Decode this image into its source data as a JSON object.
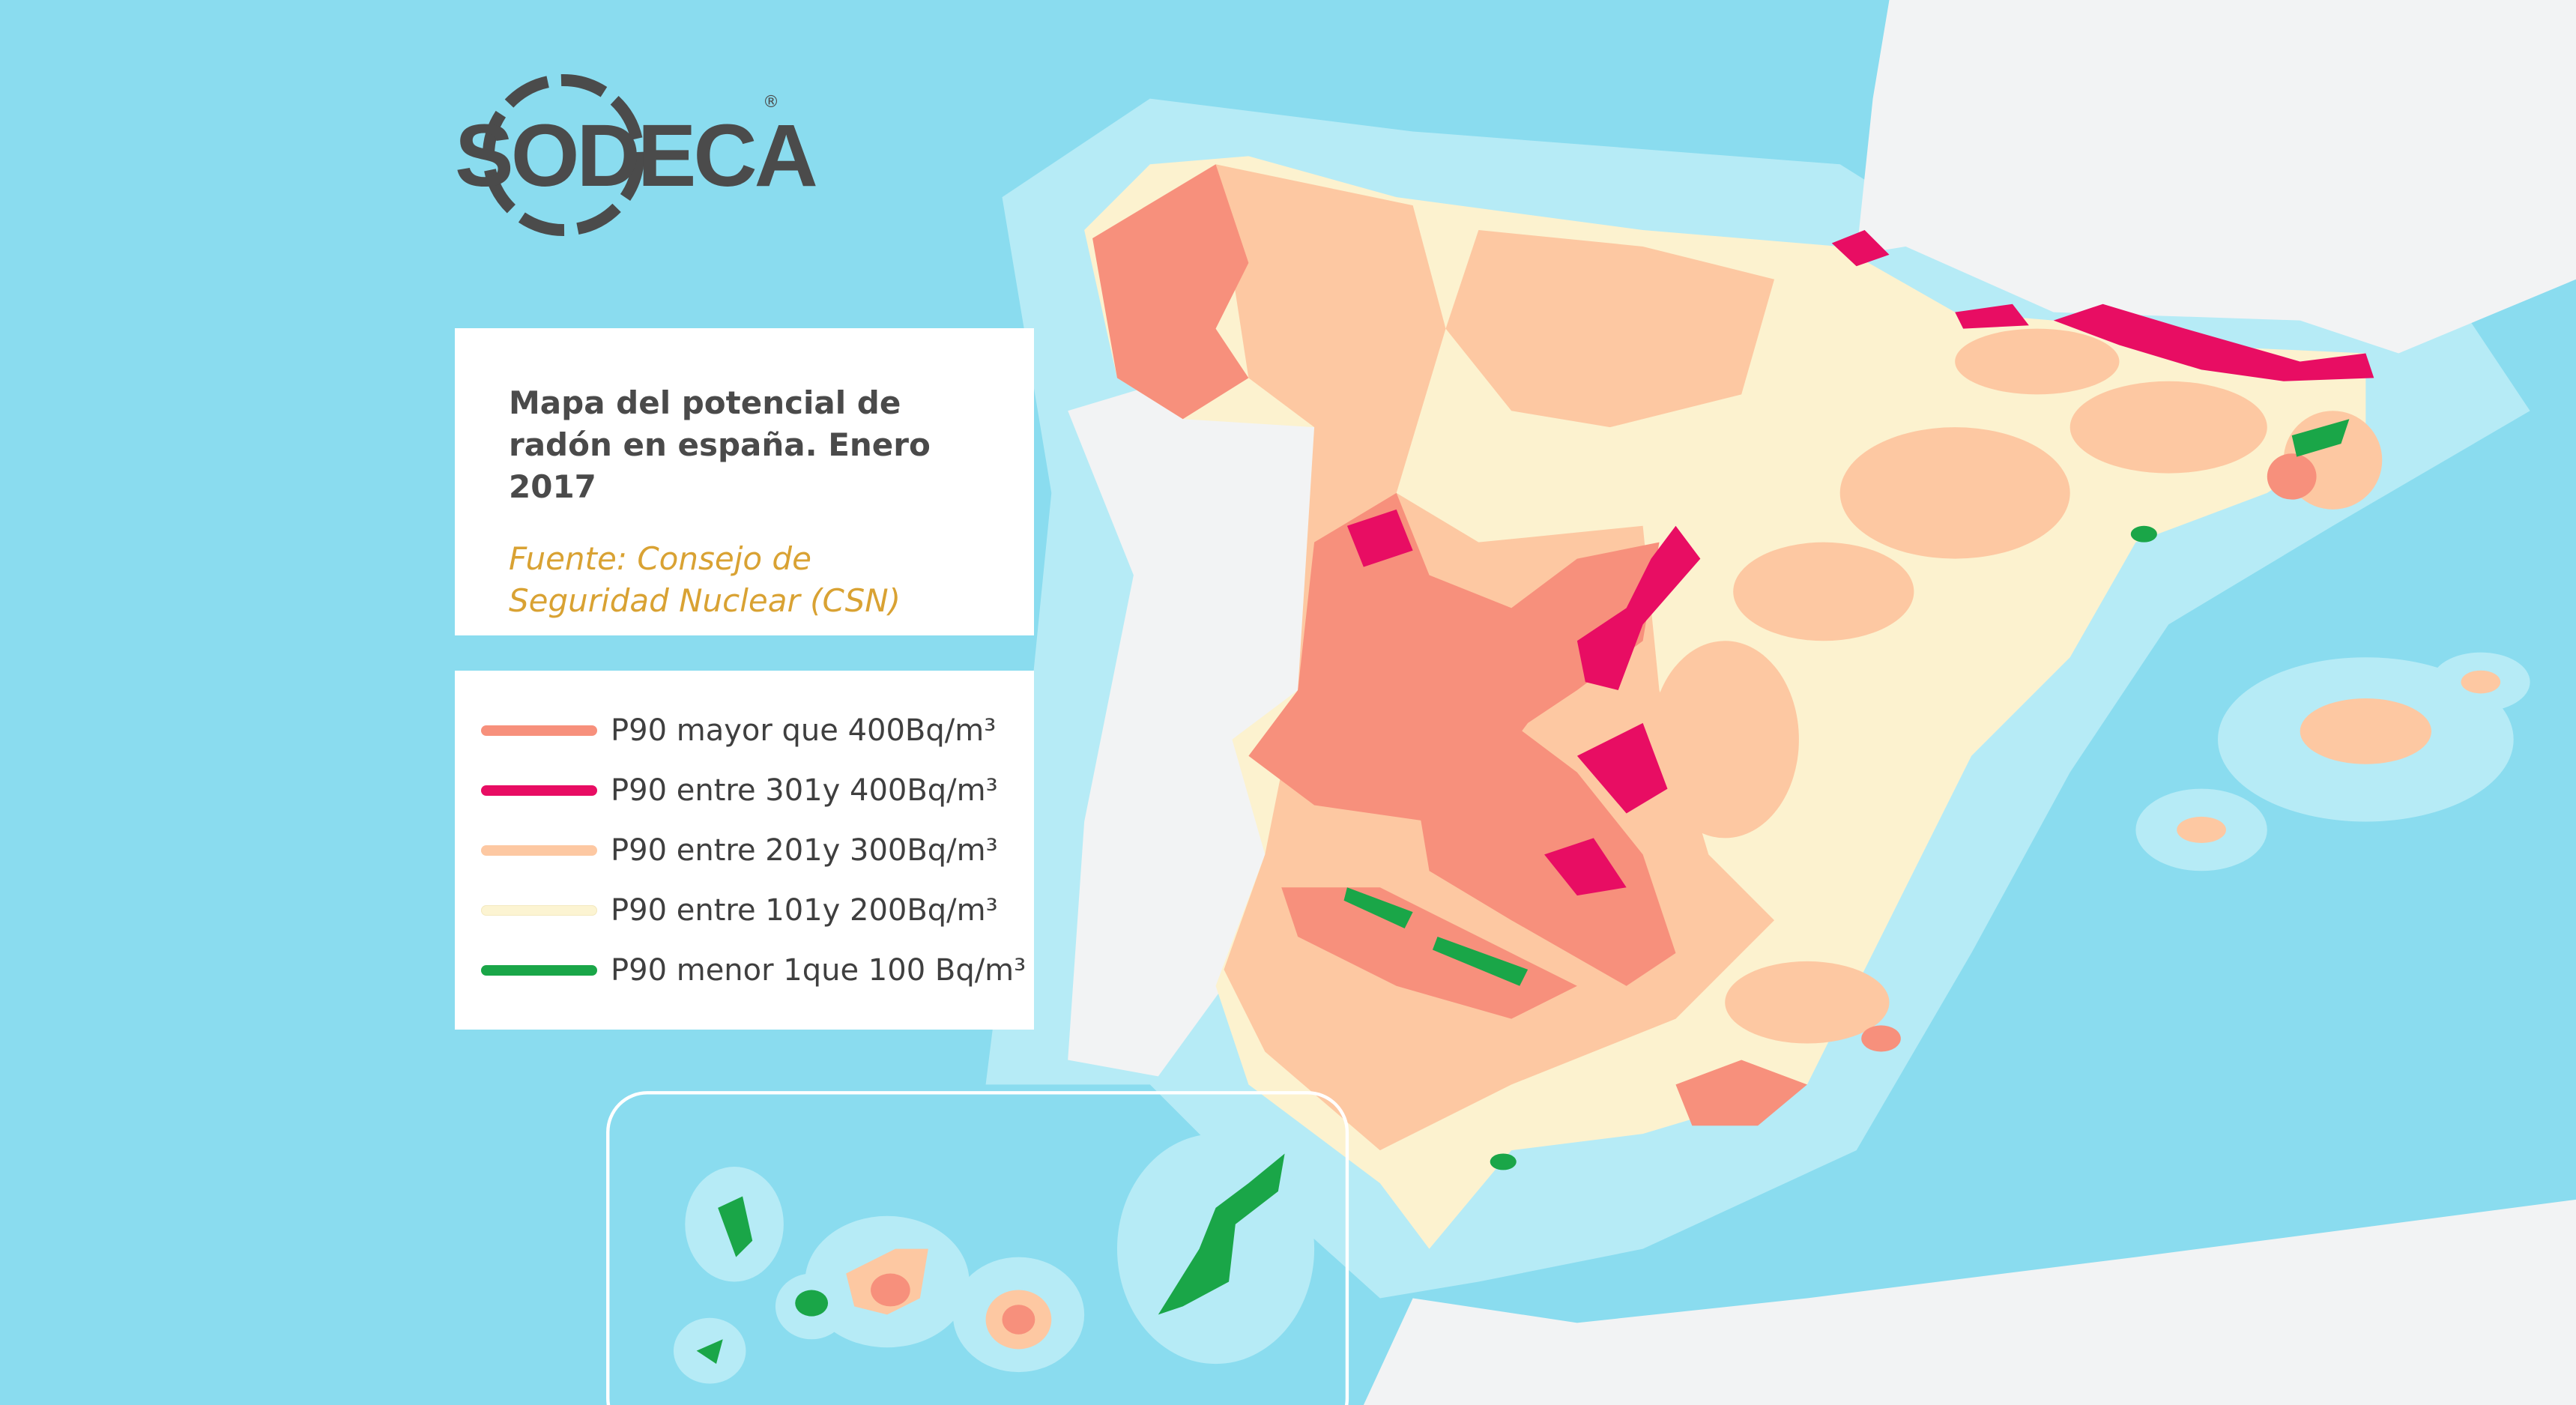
{
  "logo": {
    "text": "SODECA",
    "registered": "®"
  },
  "header": {
    "title": "Mapa del potencial de radón en españa. Enero 2017",
    "source": "Fuente: Consejo de Seguridad Nuclear (CSN)"
  },
  "legend": {
    "items": [
      {
        "label": "P90 mayor que 400Bq/m³",
        "color": "#f7907c"
      },
      {
        "label": "P90 entre 301y 400Bq/m³",
        "color": "#e80d63"
      },
      {
        "label": "P90 entre 201y 300Bq/m³",
        "color": "#fdc8a2"
      },
      {
        "label": "P90 entre 101y 200Bq/m³",
        "color": "#fcf4d2"
      },
      {
        "label": "P90 menor 1que 100 Bq/m³",
        "color": "#1aa648"
      }
    ]
  }
}
